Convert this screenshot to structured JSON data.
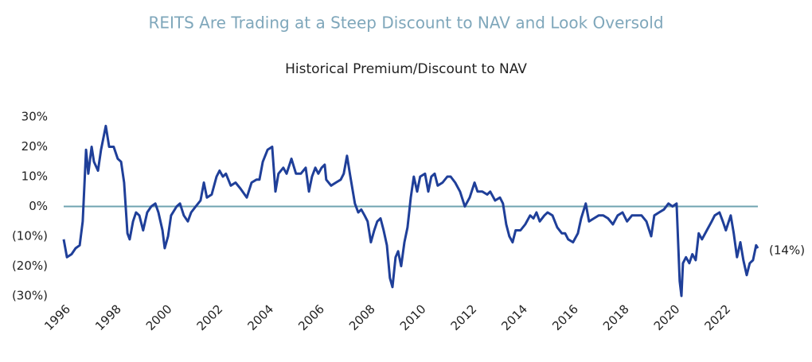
{
  "chart_data": {
    "type": "line",
    "title": "REITS Are Trading at a Steep Discount to NAV and Look Oversold",
    "subtitle": "Historical Premium/Discount to NAV",
    "x": [
      1996.0,
      1996.13,
      1996.31,
      1996.47,
      1996.63,
      1996.75,
      1996.88,
      1996.97,
      1997.1,
      1997.19,
      1997.35,
      1997.47,
      1997.66,
      1997.79,
      1997.97,
      1998.13,
      1998.26,
      1998.38,
      1998.51,
      1998.6,
      1998.73,
      1998.85,
      1998.98,
      1999.13,
      1999.29,
      1999.45,
      1999.61,
      1999.73,
      1999.89,
      1999.98,
      2000.11,
      2000.23,
      2000.45,
      2000.58,
      2000.73,
      2000.89,
      2001.02,
      2001.2,
      2001.39,
      2001.52,
      2001.64,
      2001.83,
      2002.02,
      2002.14,
      2002.27,
      2002.39,
      2002.58,
      2002.77,
      2002.96,
      2003.21,
      2003.4,
      2003.59,
      2003.71,
      2003.84,
      2004.03,
      2004.21,
      2004.34,
      2004.46,
      2004.65,
      2004.78,
      2004.97,
      2005.15,
      2005.34,
      2005.53,
      2005.66,
      2005.78,
      2005.91,
      2006.03,
      2006.16,
      2006.28,
      2006.34,
      2006.53,
      2006.72,
      2006.91,
      2007.03,
      2007.16,
      2007.29,
      2007.47,
      2007.6,
      2007.72,
      2007.85,
      2007.97,
      2008.1,
      2008.23,
      2008.35,
      2008.48,
      2008.6,
      2008.73,
      2008.85,
      2008.95,
      2009.07,
      2009.17,
      2009.29,
      2009.42,
      2009.54,
      2009.67,
      2009.79,
      2009.92,
      2010.04,
      2010.23,
      2010.36,
      2010.48,
      2010.61,
      2010.73,
      2010.92,
      2011.11,
      2011.24,
      2011.42,
      2011.61,
      2011.8,
      2011.99,
      2012.18,
      2012.3,
      2012.49,
      2012.68,
      2012.8,
      2012.99,
      2013.18,
      2013.3,
      2013.43,
      2013.55,
      2013.68,
      2013.8,
      2013.99,
      2014.18,
      2014.37,
      2014.5,
      2014.62,
      2014.75,
      2014.93,
      2015.06,
      2015.25,
      2015.44,
      2015.62,
      2015.75,
      2015.87,
      2016.06,
      2016.25,
      2016.38,
      2016.56,
      2016.69,
      2016.88,
      2017.07,
      2017.25,
      2017.44,
      2017.63,
      2017.82,
      2018.01,
      2018.19,
      2018.38,
      2018.57,
      2018.76,
      2018.95,
      2019.14,
      2019.26,
      2019.45,
      2019.64,
      2019.82,
      2019.98,
      2020.14,
      2020.26,
      2020.33,
      2020.39,
      2020.51,
      2020.64,
      2020.76,
      2020.89,
      2021.01,
      2021.14,
      2021.33,
      2021.52,
      2021.64,
      2021.83,
      2021.96,
      2022.08,
      2022.27,
      2022.39,
      2022.52,
      2022.65,
      2022.77,
      2022.9,
      2023.02,
      2023.15,
      2023.27,
      2023.34
    ],
    "series": [
      {
        "name": "Premium/Discount to NAV",
        "color": "#1f3f99",
        "values": [
          -11,
          -17,
          -16,
          -14,
          -13,
          -5,
          19,
          11,
          20,
          15,
          12,
          19,
          27,
          20,
          20,
          16,
          15,
          8,
          -9,
          -11,
          -5,
          -2,
          -3,
          -8,
          -2,
          0,
          1,
          -2,
          -8,
          -14,
          -10,
          -3,
          0,
          1,
          -3,
          -5,
          -2,
          0,
          2,
          8,
          3,
          4,
          10,
          12,
          10,
          11,
          7,
          8,
          6,
          3,
          8,
          9,
          9,
          15,
          19,
          20,
          5,
          11,
          13,
          11,
          16,
          11,
          11,
          13,
          5,
          10,
          13,
          11,
          13,
          14,
          9,
          7,
          8,
          9,
          11,
          17,
          10,
          1,
          -2,
          -1,
          -3,
          -5,
          -12,
          -8,
          -5,
          -4,
          -8,
          -13,
          -24,
          -27,
          -17,
          -15,
          -20,
          -12,
          -7,
          3,
          10,
          5,
          10,
          11,
          5,
          10,
          11,
          7,
          8,
          10,
          10,
          8,
          5,
          0,
          3,
          8,
          5,
          5,
          4,
          5,
          2,
          3,
          1,
          -6,
          -10,
          -12,
          -8,
          -8,
          -6,
          -3,
          -4,
          -2,
          -5,
          -3,
          -2,
          -3,
          -7,
          -9,
          -9,
          -11,
          -12,
          -9,
          -4,
          1,
          -5,
          -4,
          -3,
          -3,
          -4,
          -6,
          -3,
          -2,
          -5,
          -3,
          -3,
          -3,
          -5,
          -10,
          -3,
          -2,
          -1,
          1,
          0,
          1,
          -25,
          -30,
          -19,
          -17,
          -19,
          -16,
          -18,
          -9,
          -11,
          -8,
          -5,
          -3,
          -2,
          -5,
          -8,
          -3,
          -9,
          -17,
          -12,
          -18,
          -23,
          -19,
          -18,
          -13,
          -14
        ]
      }
    ],
    "xlim": [
      1996,
      2023.34
    ],
    "xticks": [
      1996,
      1998,
      2000,
      2002,
      2004,
      2006,
      2008,
      2010,
      2012,
      2014,
      2016,
      2018,
      2020,
      2022
    ],
    "ylim": [
      -30,
      30
    ],
    "yticks": [
      {
        "value": 30,
        "label": "30%"
      },
      {
        "value": 20,
        "label": "20%"
      },
      {
        "value": 10,
        "label": "10%"
      },
      {
        "value": 0,
        "label": "0%"
      },
      {
        "value": -10,
        "label": "(10%)"
      },
      {
        "value": -20,
        "label": "(20%)"
      },
      {
        "value": -30,
        "label": "(30%)"
      }
    ],
    "zero_line_color": "#6fa3b0",
    "annotations": [
      {
        "value": -14,
        "label": "(14%)"
      }
    ]
  }
}
